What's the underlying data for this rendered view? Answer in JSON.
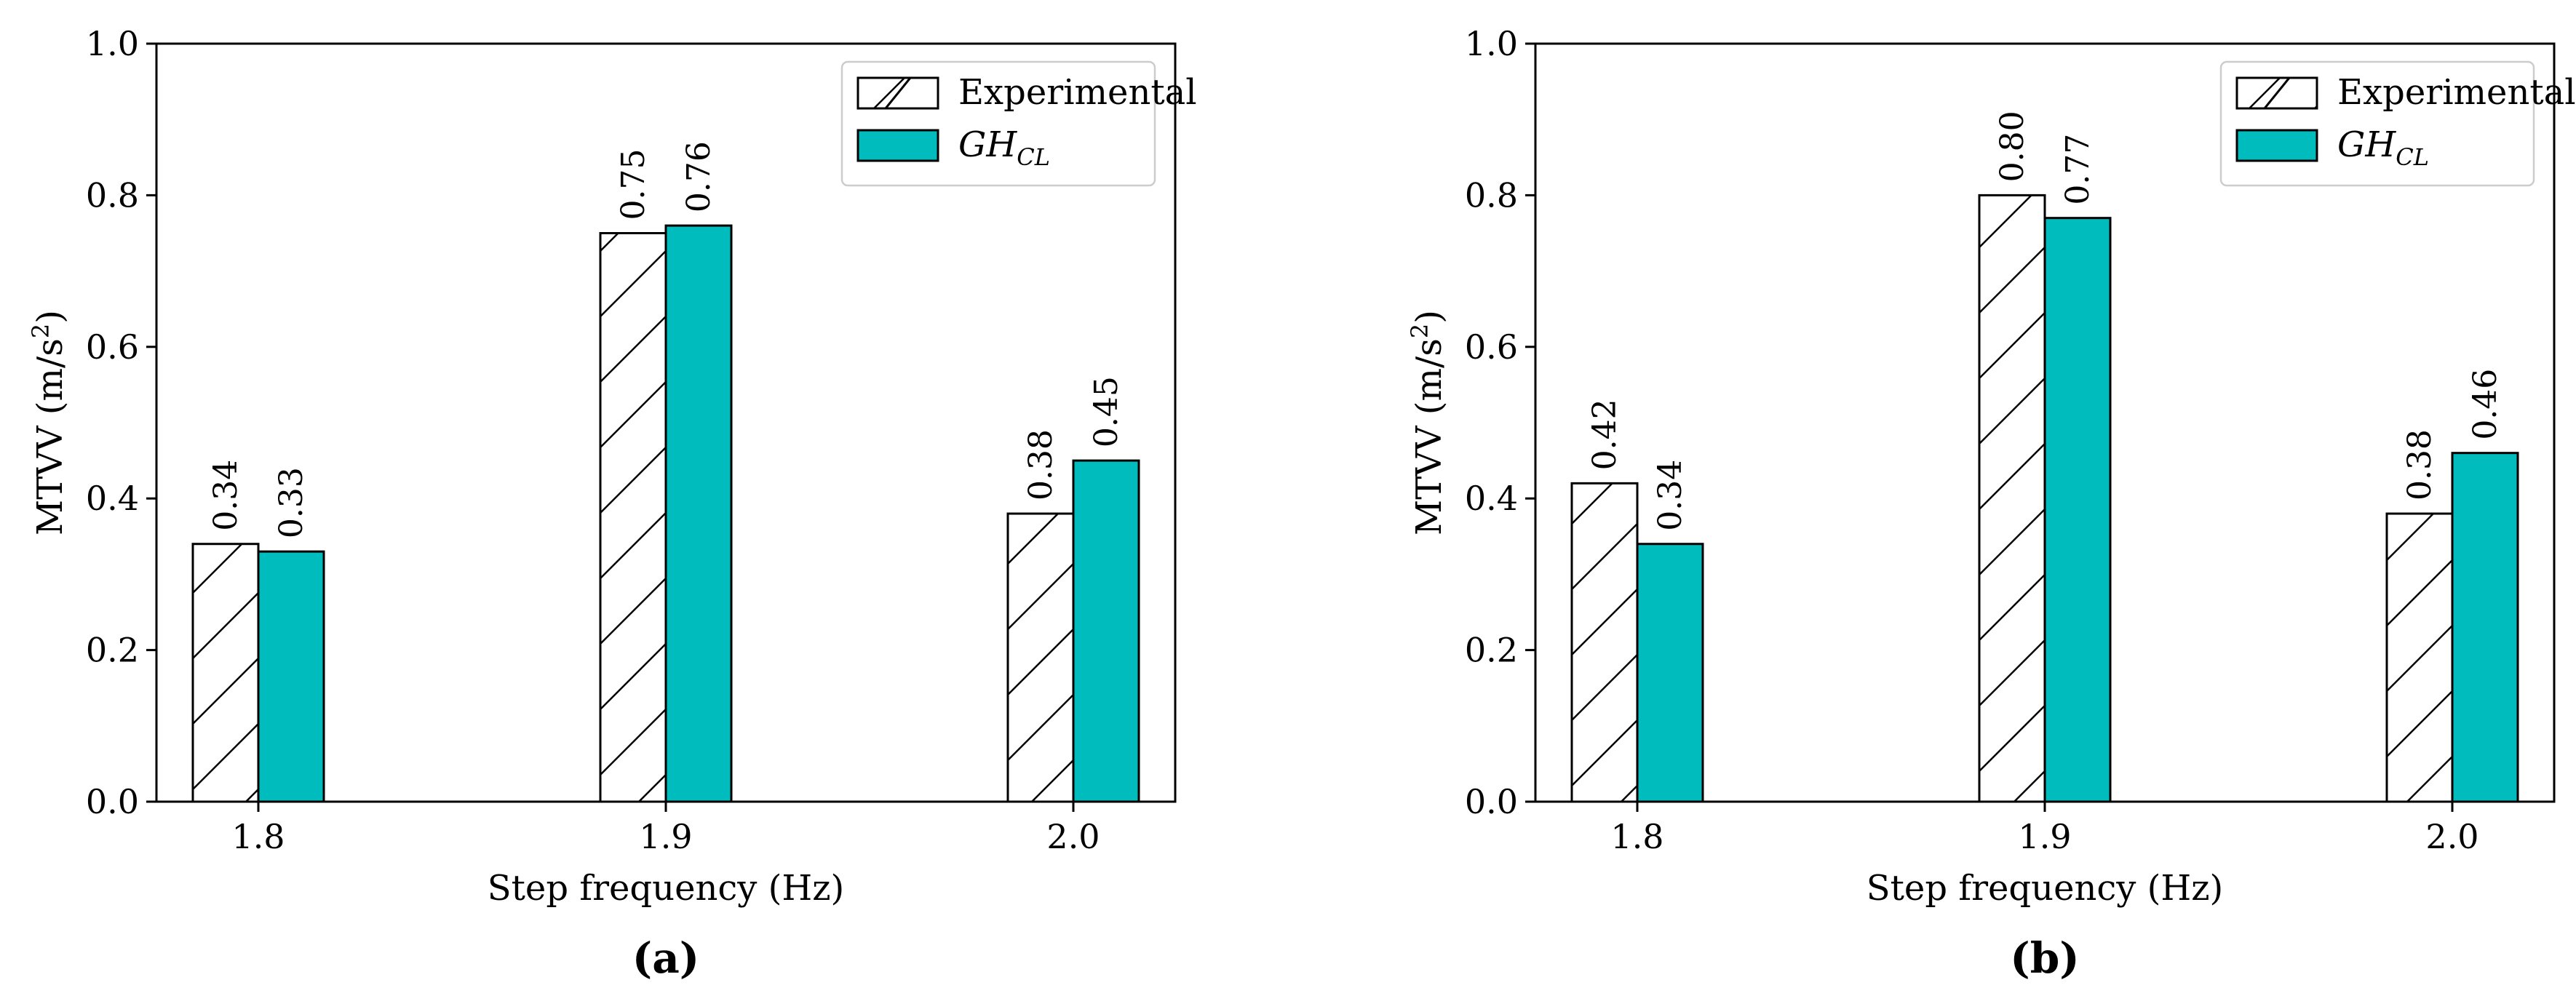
{
  "chart_data": [
    {
      "type": "bar",
      "panel_label": "(a)",
      "categories": [
        "1.8",
        "1.9",
        "2.0"
      ],
      "series": [
        {
          "name": "Experimental",
          "values": [
            0.34,
            0.75,
            0.38
          ],
          "labels": [
            "0.34",
            "0.75",
            "0.38"
          ],
          "style": "hatched"
        },
        {
          "name": "GH",
          "subscript": "CL",
          "values": [
            0.33,
            0.76,
            0.45
          ],
          "labels": [
            "0.33",
            "0.76",
            "0.45"
          ],
          "style": "solid"
        }
      ],
      "xlabel": "Step frequency (Hz)",
      "ylabel": "MTVV (m/s",
      "ylabel_sup": "2",
      "ylabel_end": ")",
      "ylim": [
        0,
        1.0
      ],
      "yticks": [
        "0.0",
        "0.2",
        "0.4",
        "0.6",
        "0.8",
        "1.0"
      ],
      "legend": "top-right",
      "grid": false
    },
    {
      "type": "bar",
      "panel_label": "(b)",
      "categories": [
        "1.8",
        "1.9",
        "2.0"
      ],
      "series": [
        {
          "name": "Experimental",
          "values": [
            0.42,
            0.8,
            0.38
          ],
          "labels": [
            "0.42",
            "0.80",
            "0.38"
          ],
          "style": "hatched"
        },
        {
          "name": "GH",
          "subscript": "CL",
          "values": [
            0.34,
            0.77,
            0.46
          ],
          "labels": [
            "0.34",
            "0.77",
            "0.46"
          ],
          "style": "solid"
        }
      ],
      "xlabel": "Step frequency (Hz)",
      "ylabel": "MTVV (m/s",
      "ylabel_sup": "2",
      "ylabel_end": ")",
      "ylim": [
        0,
        1.0
      ],
      "yticks": [
        "0.0",
        "0.2",
        "0.4",
        "0.6",
        "0.8",
        "1.0"
      ],
      "legend": "top-right",
      "grid": false
    }
  ],
  "colors": {
    "solid_bar": "#00bcbc",
    "hatched_bar": "#ffffff",
    "edge": "#000000"
  }
}
